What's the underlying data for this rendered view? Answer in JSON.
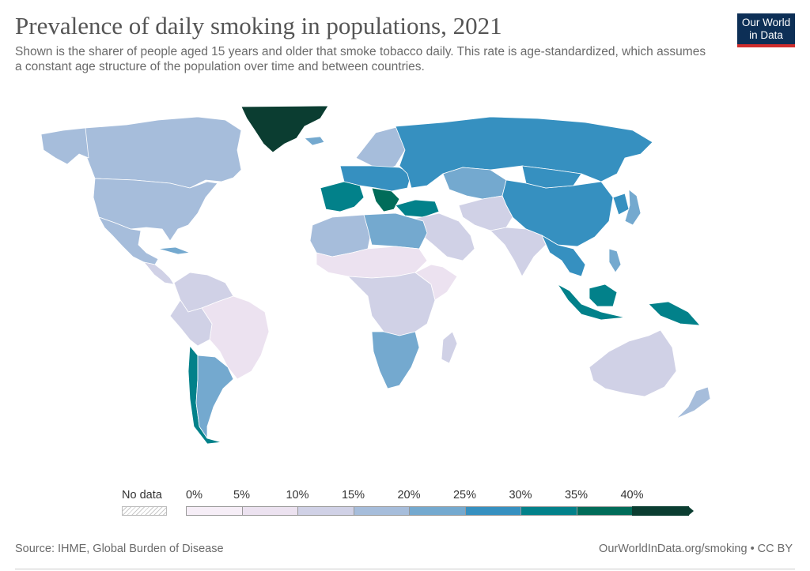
{
  "header": {
    "title": "Prevalence of daily smoking in populations, 2021",
    "subtitle": "Shown is the sharer of people aged 15 years and older that smoke tobacco daily. This rate is age-standardized, which assumes a constant age structure of the population over time and between countries.",
    "logo_line1": "Our World",
    "logo_line2": "in Data"
  },
  "legend": {
    "no_data_label": "No data",
    "ticks": [
      "0%",
      "5%",
      "10%",
      "15%",
      "20%",
      "25%",
      "30%",
      "35%",
      "40%"
    ],
    "colors": [
      "#f6eef7",
      "#ece2f0",
      "#d0d1e6",
      "#a6bddb",
      "#74a9cf",
      "#3690c0",
      "#02818a",
      "#016c59",
      "#0b3d31"
    ]
  },
  "map": {
    "regions": [
      {
        "name": "greenland",
        "bin": 8
      },
      {
        "name": "canada",
        "bin": 3
      },
      {
        "name": "alaska",
        "bin": 3
      },
      {
        "name": "usa",
        "bin": 3
      },
      {
        "name": "mexico",
        "bin": 3
      },
      {
        "name": "central-america",
        "bin": 2
      },
      {
        "name": "cuba",
        "bin": 4
      },
      {
        "name": "colombia-venezuela",
        "bin": 2
      },
      {
        "name": "brazil",
        "bin": 1
      },
      {
        "name": "peru-bolivia",
        "bin": 2
      },
      {
        "name": "chile",
        "bin": 6
      },
      {
        "name": "argentina",
        "bin": 4
      },
      {
        "name": "iceland",
        "bin": 4
      },
      {
        "name": "scandinavia",
        "bin": 3
      },
      {
        "name": "western-europe",
        "bin": 5
      },
      {
        "name": "france-spain",
        "bin": 6
      },
      {
        "name": "balkans",
        "bin": 7
      },
      {
        "name": "turkey",
        "bin": 6
      },
      {
        "name": "russia",
        "bin": 5
      },
      {
        "name": "kazakhstan",
        "bin": 4
      },
      {
        "name": "china",
        "bin": 5
      },
      {
        "name": "mongolia",
        "bin": 5
      },
      {
        "name": "japan",
        "bin": 4
      },
      {
        "name": "korea",
        "bin": 5
      },
      {
        "name": "middle-east",
        "bin": 2
      },
      {
        "name": "iran-pakistan",
        "bin": 2
      },
      {
        "name": "india",
        "bin": 2
      },
      {
        "name": "southeast-asia",
        "bin": 5
      },
      {
        "name": "sumatra-java",
        "bin": 6
      },
      {
        "name": "borneo",
        "bin": 6
      },
      {
        "name": "new-guinea",
        "bin": 6
      },
      {
        "name": "philippines",
        "bin": 4
      },
      {
        "name": "north-africa-west",
        "bin": 3
      },
      {
        "name": "egypt-libya",
        "bin": 4
      },
      {
        "name": "sahel",
        "bin": 1
      },
      {
        "name": "central-africa",
        "bin": 2
      },
      {
        "name": "east-africa",
        "bin": 1
      },
      {
        "name": "southern-africa",
        "bin": 4
      },
      {
        "name": "madagascar",
        "bin": 2
      },
      {
        "name": "australia",
        "bin": 2
      },
      {
        "name": "new-zealand",
        "bin": 3
      }
    ]
  },
  "footer": {
    "source": "Source: IHME, Global Burden of Disease",
    "url": "OurWorldInData.org/smoking • CC BY"
  }
}
